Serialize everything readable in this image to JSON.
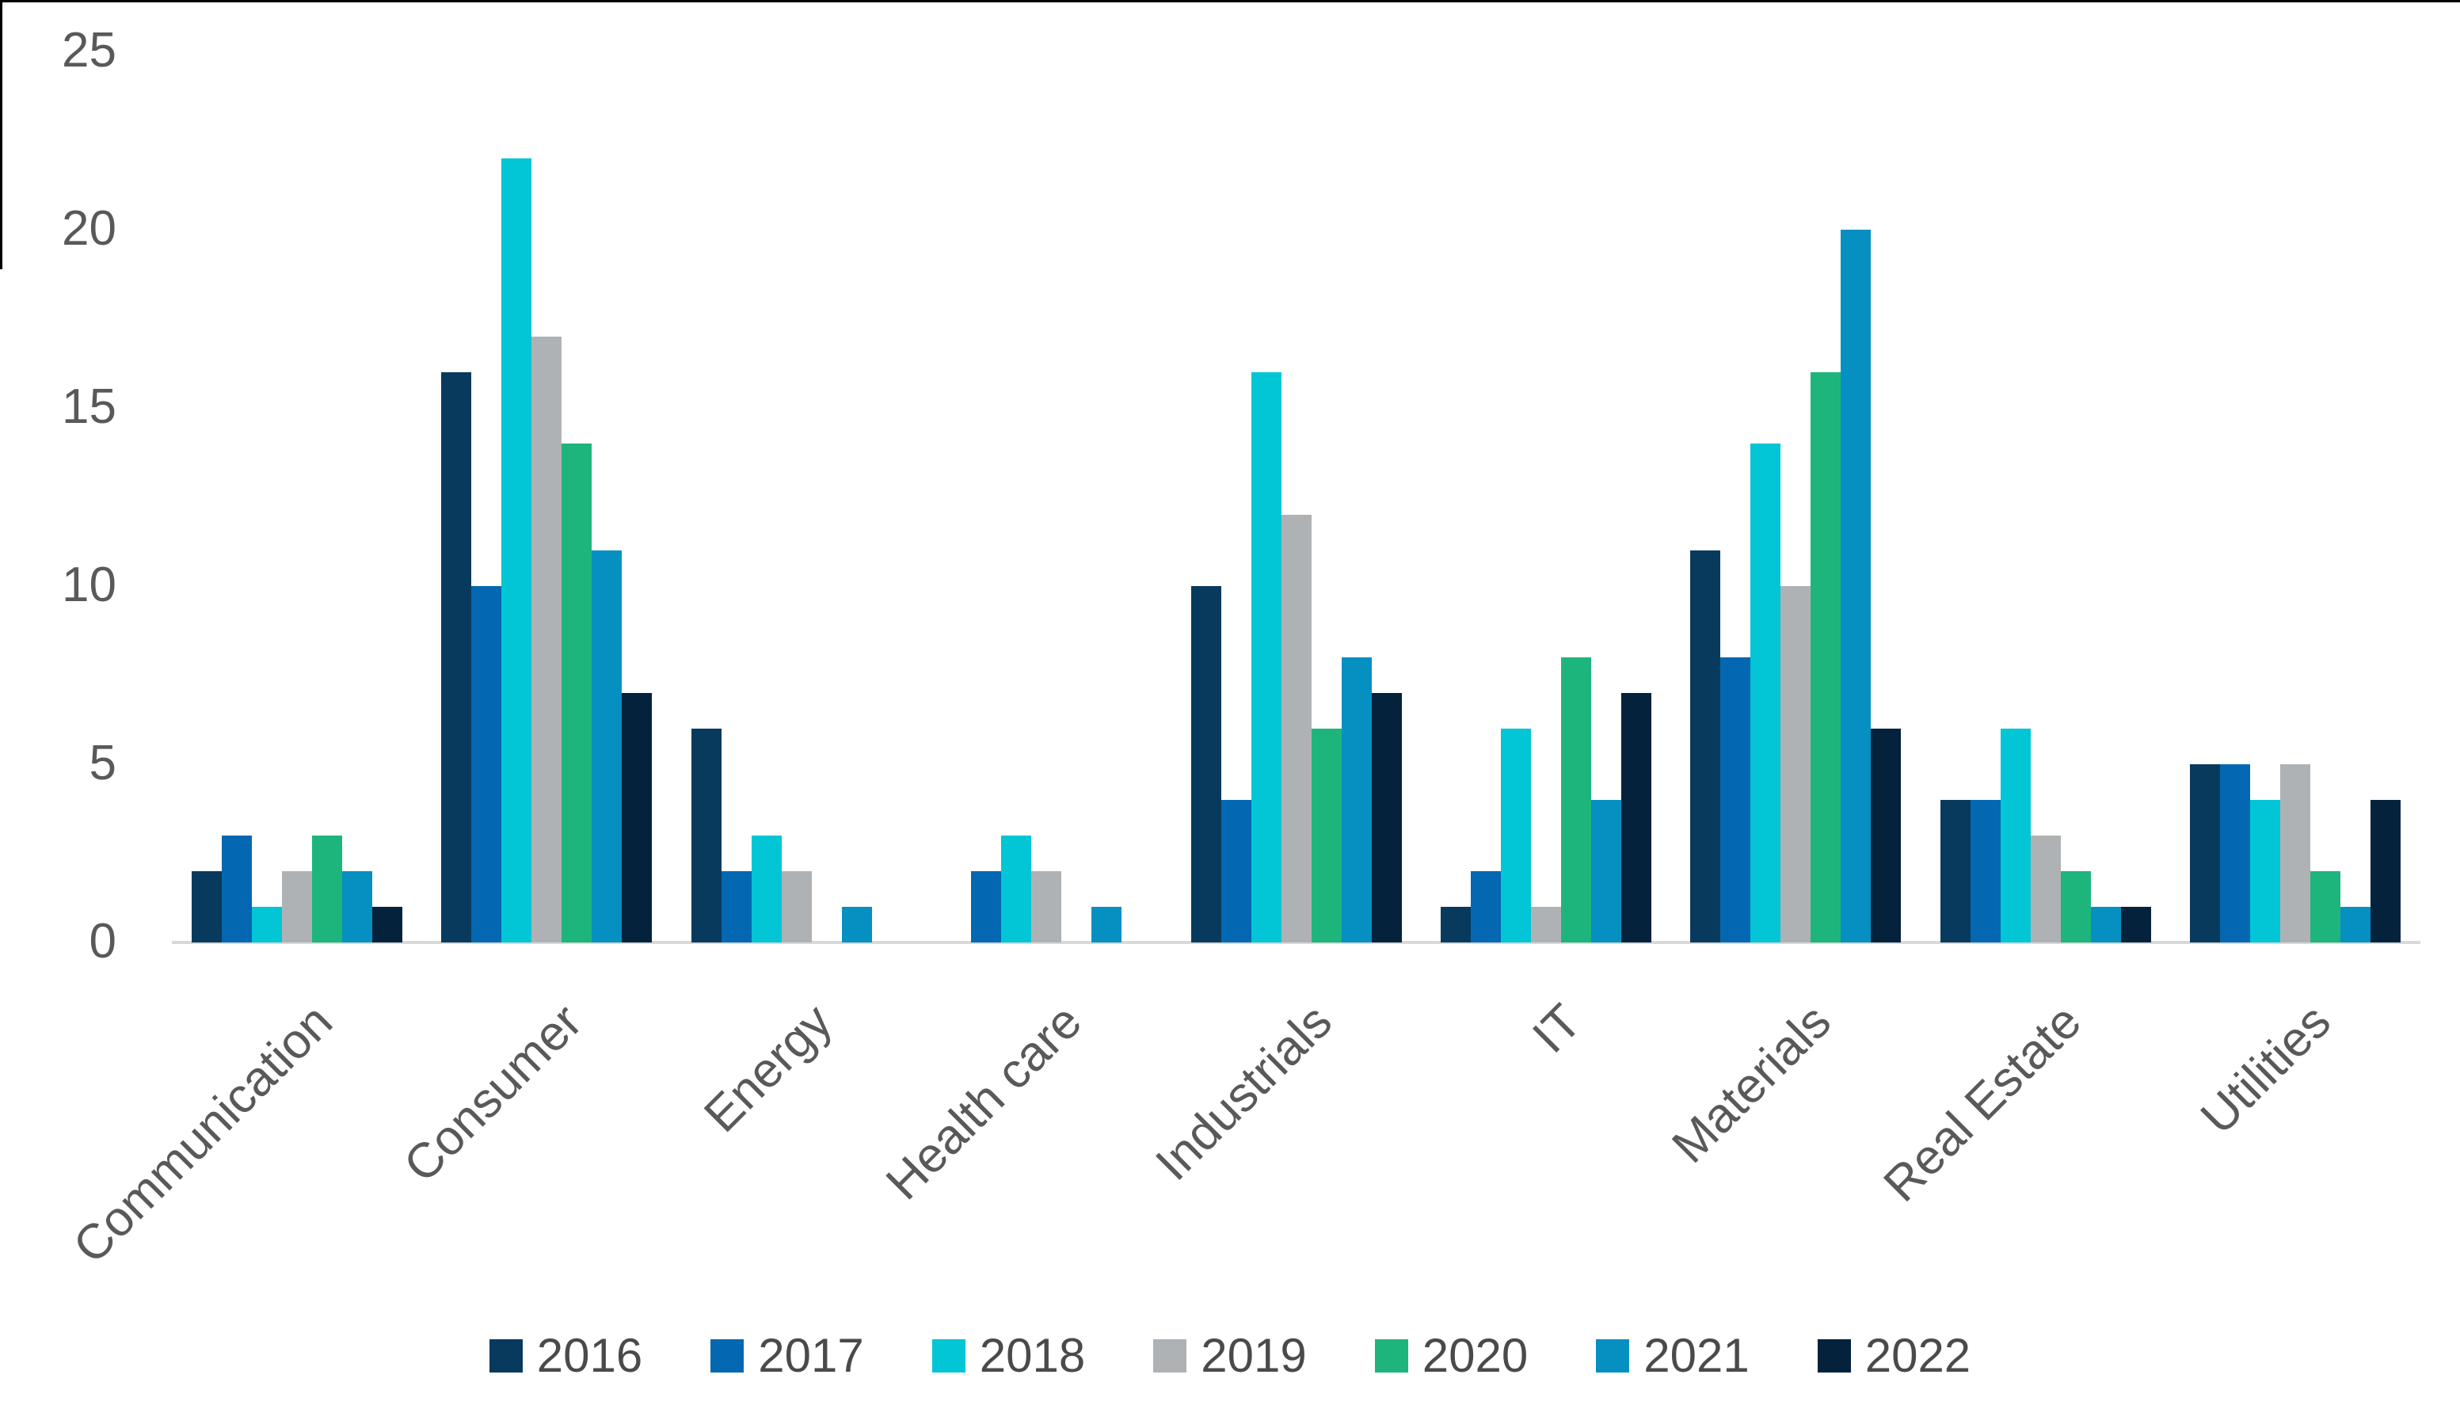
{
  "chart_data": {
    "type": "bar",
    "title": "",
    "xlabel": "",
    "ylabel": "",
    "categories": [
      "Communication",
      "Consumer",
      "Energy",
      "Health care",
      "Industrials",
      "IT",
      "Materials",
      "Real Estate",
      "Utilities"
    ],
    "series": [
      {
        "name": "2016",
        "color": "#083A5E",
        "values": [
          2,
          16,
          6,
          0,
          10,
          1,
          11,
          4,
          5
        ]
      },
      {
        "name": "2017",
        "color": "#0368B1",
        "values": [
          3,
          10,
          2,
          2,
          4,
          2,
          8,
          4,
          5
        ]
      },
      {
        "name": "2018",
        "color": "#02C5D5",
        "values": [
          1,
          22,
          3,
          3,
          16,
          6,
          14,
          6,
          4
        ]
      },
      {
        "name": "2019",
        "color": "#AEB2B5",
        "values": [
          2,
          17,
          2,
          2,
          12,
          1,
          10,
          3,
          5
        ]
      },
      {
        "name": "2020",
        "color": "#1EB57D",
        "values": [
          3,
          14,
          0,
          0,
          6,
          8,
          16,
          2,
          2
        ]
      },
      {
        "name": "2021",
        "color": "#0590C1",
        "values": [
          2,
          11,
          1,
          1,
          8,
          4,
          20,
          1,
          1
        ]
      },
      {
        "name": "2022",
        "color": "#04223C",
        "values": [
          1,
          7,
          0,
          0,
          7,
          7,
          6,
          1,
          4
        ]
      }
    ],
    "yticks": [
      0,
      5,
      10,
      15,
      20,
      25
    ],
    "ylim": [
      0,
      25
    ],
    "grid": false,
    "legend_position": "bottom",
    "axis_line_color": "#D9D9D9",
    "tick_label_color": "#595959",
    "legend_text_color": "#4a4a4a"
  }
}
